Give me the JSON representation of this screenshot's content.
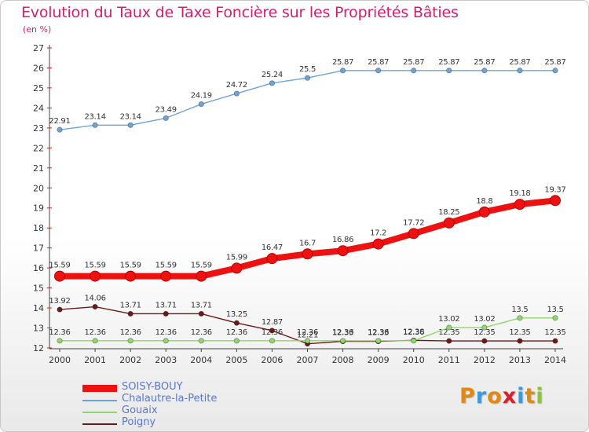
{
  "title": "Evolution du Taux de Taxe Foncière sur les Propriétés Bâties",
  "subtitle": "(en %)",
  "logo": {
    "letters": [
      "P",
      "r",
      "o",
      "x",
      "i",
      "t",
      "i"
    ],
    "colors": [
      "#e08a16",
      "#3d9ad6",
      "#e08a16",
      "#d6222a",
      "#3d9ad6",
      "#e08a16",
      "#8ac43a"
    ]
  },
  "chart_data": {
    "type": "line",
    "title": "Evolution du Taux de Taxe Foncière sur les Propriétés Bâties",
    "ylabel": "(en %)",
    "x": [
      "2000",
      "2001",
      "2002",
      "2003",
      "2004",
      "2005",
      "2006",
      "2007",
      "2008",
      "2009",
      "2010",
      "2011",
      "2012",
      "2013",
      "2014"
    ],
    "ylim": [
      12,
      27
    ],
    "yticks": [
      12,
      13,
      14,
      15,
      16,
      17,
      18,
      19,
      20,
      21,
      22,
      23,
      24,
      25,
      26,
      27
    ],
    "grid": false,
    "legend_position": "bottom-left",
    "series": [
      {
        "name": "Chalautre-la-Petite",
        "color": "#6ea3d6",
        "values": [
          22.91,
          23.14,
          23.14,
          23.49,
          24.19,
          24.72,
          25.24,
          25.5,
          25.87,
          25.87,
          25.87,
          25.87,
          25.87,
          25.87,
          25.87
        ],
        "labels": [
          "22.91",
          "23.14",
          "23.14",
          "23.49",
          "24.19",
          "24.72",
          "25.24",
          "25.5",
          "25.87",
          "25.87",
          "25.87",
          "25.87",
          "25.87",
          "25.87",
          "25.87"
        ]
      },
      {
        "name": "Poigny",
        "color": "#6b1a1a",
        "values": [
          13.92,
          14.06,
          13.71,
          13.71,
          13.71,
          13.25,
          12.87,
          12.21,
          12.33,
          12.33,
          12.38,
          12.35,
          12.35,
          12.35,
          12.35
        ],
        "labels": [
          "13.92",
          "14.06",
          "13.71",
          "13.71",
          "13.71",
          "13.25",
          "12.87",
          "12.21",
          "12.33",
          "12.33",
          "12.38",
          "12.35",
          "12.35",
          "12.35",
          "12.35"
        ]
      },
      {
        "name": "Gouaix",
        "color": "#8fd86a",
        "values": [
          12.36,
          12.36,
          12.36,
          12.36,
          12.36,
          12.36,
          12.36,
          12.36,
          12.36,
          12.36,
          12.36,
          13.02,
          13.02,
          13.5,
          13.5
        ],
        "labels": [
          "12.36",
          "12.36",
          "12.36",
          "12.36",
          "12.36",
          "12.36",
          "12.36",
          "12.36",
          "12.36",
          "12.36",
          "12.36",
          "13.02",
          "13.02",
          "13.5",
          "13.5"
        ]
      },
      {
        "name": "SOISY-BOUY",
        "color": "#ee1111",
        "values": [
          15.59,
          15.59,
          15.59,
          15.59,
          15.59,
          15.99,
          16.47,
          16.7,
          16.86,
          17.2,
          17.72,
          18.25,
          18.8,
          19.18,
          19.37
        ],
        "labels": [
          "15.59",
          "15.59",
          "15.59",
          "15.59",
          "15.59",
          "15.99",
          "16.47",
          "16.7",
          "16.86",
          "17.2",
          "17.72",
          "18.25",
          "18.8",
          "19.18",
          "19.37"
        ]
      }
    ],
    "legend": [
      "SOISY-BOUY",
      "Chalautre-la-Petite",
      "Gouaix",
      "Poigny"
    ]
  }
}
